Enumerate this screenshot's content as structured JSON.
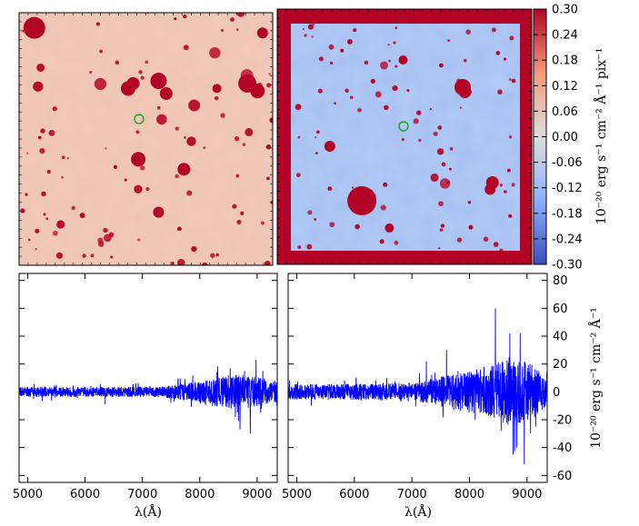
{
  "colors": {
    "cmap_low": "#3b4cc0",
    "cmap_mid": "#dddddd",
    "cmap_high": "#b40426",
    "spectrum": "#0000ff",
    "aperture": "#00a000"
  },
  "chart_data": [
    {
      "type": "heatmap",
      "panel": "top-left",
      "xlabel": "",
      "ylabel": "",
      "vmin": -0.3,
      "vmax": 0.3,
      "aperture_marker": "circle",
      "ticks_labeled": false
    },
    {
      "type": "heatmap",
      "panel": "top-right",
      "xlabel": "",
      "ylabel": "",
      "vmin": -0.3,
      "vmax": 0.3,
      "aperture_marker": "circle",
      "ticks_labeled": false,
      "colorbar": {
        "ticks": [
          "0.30",
          "0.24",
          "0.18",
          "0.12",
          "0.06",
          "0.00",
          "-0.06",
          "-0.12",
          "-0.18",
          "-0.24",
          "-0.30"
        ],
        "label": "10⁻²⁰ erg s⁻¹ cm⁻² Å⁻¹ pix⁻¹"
      }
    },
    {
      "type": "line",
      "panel": "bottom-left",
      "series_color": "#0000ff",
      "xlabel": "λ(Å)",
      "xticks": [
        "5000",
        "6000",
        "7000",
        "8000",
        "9000"
      ],
      "xlim": [
        4850,
        9350
      ],
      "ylim": [
        -65,
        85
      ],
      "noise_envelope": [
        [
          4850,
          4
        ],
        [
          7200,
          4
        ],
        [
          7800,
          7
        ],
        [
          8300,
          12
        ],
        [
          8700,
          14
        ],
        [
          9350,
          9
        ]
      ],
      "spikes": [
        [
          5500,
          5
        ],
        [
          6350,
          -9
        ],
        [
          7550,
          -7
        ],
        [
          8300,
          14
        ],
        [
          8530,
          17
        ],
        [
          8620,
          -18
        ],
        [
          8700,
          -27
        ],
        [
          8780,
          15
        ],
        [
          8880,
          -30
        ],
        [
          8980,
          23
        ],
        [
          9100,
          15
        ]
      ]
    },
    {
      "type": "line",
      "panel": "bottom-right",
      "series_color": "#0000ff",
      "xlabel": "λ(Å)",
      "xticks": [
        "5000",
        "6000",
        "7000",
        "8000",
        "9000"
      ],
      "yticks": [
        "80",
        "60",
        "40",
        "20",
        "0",
        "-20",
        "-40",
        "-60"
      ],
      "ylabel": "10⁻²⁰ erg s⁻¹ cm⁻² Å⁻¹",
      "xlim": [
        4850,
        9350
      ],
      "ylim": [
        -65,
        85
      ],
      "noise_envelope": [
        [
          4850,
          6
        ],
        [
          7000,
          7
        ],
        [
          7600,
          13
        ],
        [
          8300,
          20
        ],
        [
          8700,
          28
        ],
        [
          9100,
          22
        ],
        [
          9350,
          10
        ]
      ],
      "spikes": [
        [
          7250,
          22
        ],
        [
          7600,
          30
        ],
        [
          7800,
          15
        ],
        [
          8100,
          -20
        ],
        [
          8250,
          18
        ],
        [
          8450,
          60
        ],
        [
          8550,
          -28
        ],
        [
          8700,
          42
        ],
        [
          8760,
          -45
        ],
        [
          8820,
          -40
        ],
        [
          8880,
          42
        ],
        [
          8950,
          -52
        ],
        [
          9050,
          20
        ],
        [
          9150,
          -25
        ]
      ]
    }
  ]
}
